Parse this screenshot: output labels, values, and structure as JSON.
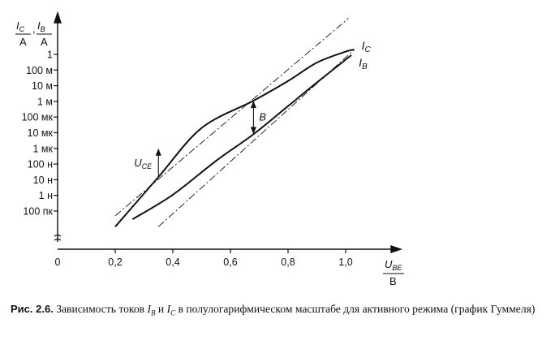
{
  "chart_data": {
    "type": "line",
    "x_axis": {
      "label_top": "U",
      "label_top_sub": "BE",
      "label_bottom": "В",
      "range": [
        0,
        1.15
      ],
      "ticks": [
        {
          "value": 0,
          "label": "0"
        },
        {
          "value": 0.2,
          "label": "0,2"
        },
        {
          "value": 0.4,
          "label": "0,4"
        },
        {
          "value": 0.6,
          "label": "0,6"
        },
        {
          "value": 0.8,
          "label": "0,8"
        },
        {
          "value": 1.0,
          "label": "1,0"
        }
      ]
    },
    "y_axis": {
      "scale": "log",
      "label_c": "I",
      "label_c_sub": "C",
      "label_b": "I",
      "label_b_sub": "B",
      "unit": "А",
      "separator": ",",
      "range_exp": [
        -11,
        1.8
      ],
      "ticks": [
        {
          "value": 1,
          "label": "1"
        },
        {
          "value": 0.1,
          "label": "100 м"
        },
        {
          "value": 0.01,
          "label": "10 м"
        },
        {
          "value": 0.001,
          "label": "1 м"
        },
        {
          "value": 0.0001,
          "label": "100 мк"
        },
        {
          "value": 1e-05,
          "label": "10 мк"
        },
        {
          "value": 1e-06,
          "label": "1 мк"
        },
        {
          "value": 1e-07,
          "label": "100 н"
        },
        {
          "value": 1e-08,
          "label": "10 н"
        },
        {
          "value": 1e-09,
          "label": "1 н"
        },
        {
          "value": 1e-10,
          "label": "100 пк"
        }
      ]
    },
    "series": [
      {
        "name": "I",
        "name_sub": "C",
        "style": "solid",
        "points": [
          [
            0.2,
            1e-11
          ],
          [
            0.35,
            1.5e-08
          ],
          [
            0.5,
            2e-05
          ],
          [
            0.68,
            0.0011
          ],
          [
            0.8,
            0.02
          ],
          [
            0.9,
            0.3
          ],
          [
            1.0,
            1.5
          ],
          [
            1.03,
            2.0
          ]
        ]
      },
      {
        "name": "I",
        "name_sub": "B",
        "style": "solid",
        "points": [
          [
            0.26,
            3e-11
          ],
          [
            0.4,
            1.1e-09
          ],
          [
            0.55,
            1.6e-07
          ],
          [
            0.68,
            8e-06
          ],
          [
            0.8,
            0.0005
          ],
          [
            0.9,
            0.016
          ],
          [
            1.02,
            0.9
          ]
        ]
      },
      {
        "style": "dash-dot",
        "points": [
          [
            0.2,
            5e-11
          ],
          [
            1.01,
            200.0
          ]
        ]
      },
      {
        "style": "dash-dot",
        "points": [
          [
            0.35,
            1e-11
          ],
          [
            1.03,
            2.0
          ]
        ]
      }
    ],
    "annotations": [
      {
        "text": "B",
        "style": "double-arrow",
        "x": 0.68,
        "y_from": 0.0011,
        "y_to": 8e-06
      },
      {
        "text": "U",
        "sub": "CE",
        "style": "arrow-up",
        "x": 0.35,
        "y_from": 1.5e-08,
        "y_to": 1e-06
      }
    ],
    "grid": false
  },
  "caption": {
    "label": "Рис. 2.6.",
    "text_1": "Зависимость токов",
    "sym_b": "I",
    "sym_b_sub": "B",
    "text_2": "и",
    "sym_c": "I",
    "sym_c_sub": "C",
    "text_3": "в полулогарифмическом масштабе для активного режима (график Гуммеля)"
  }
}
